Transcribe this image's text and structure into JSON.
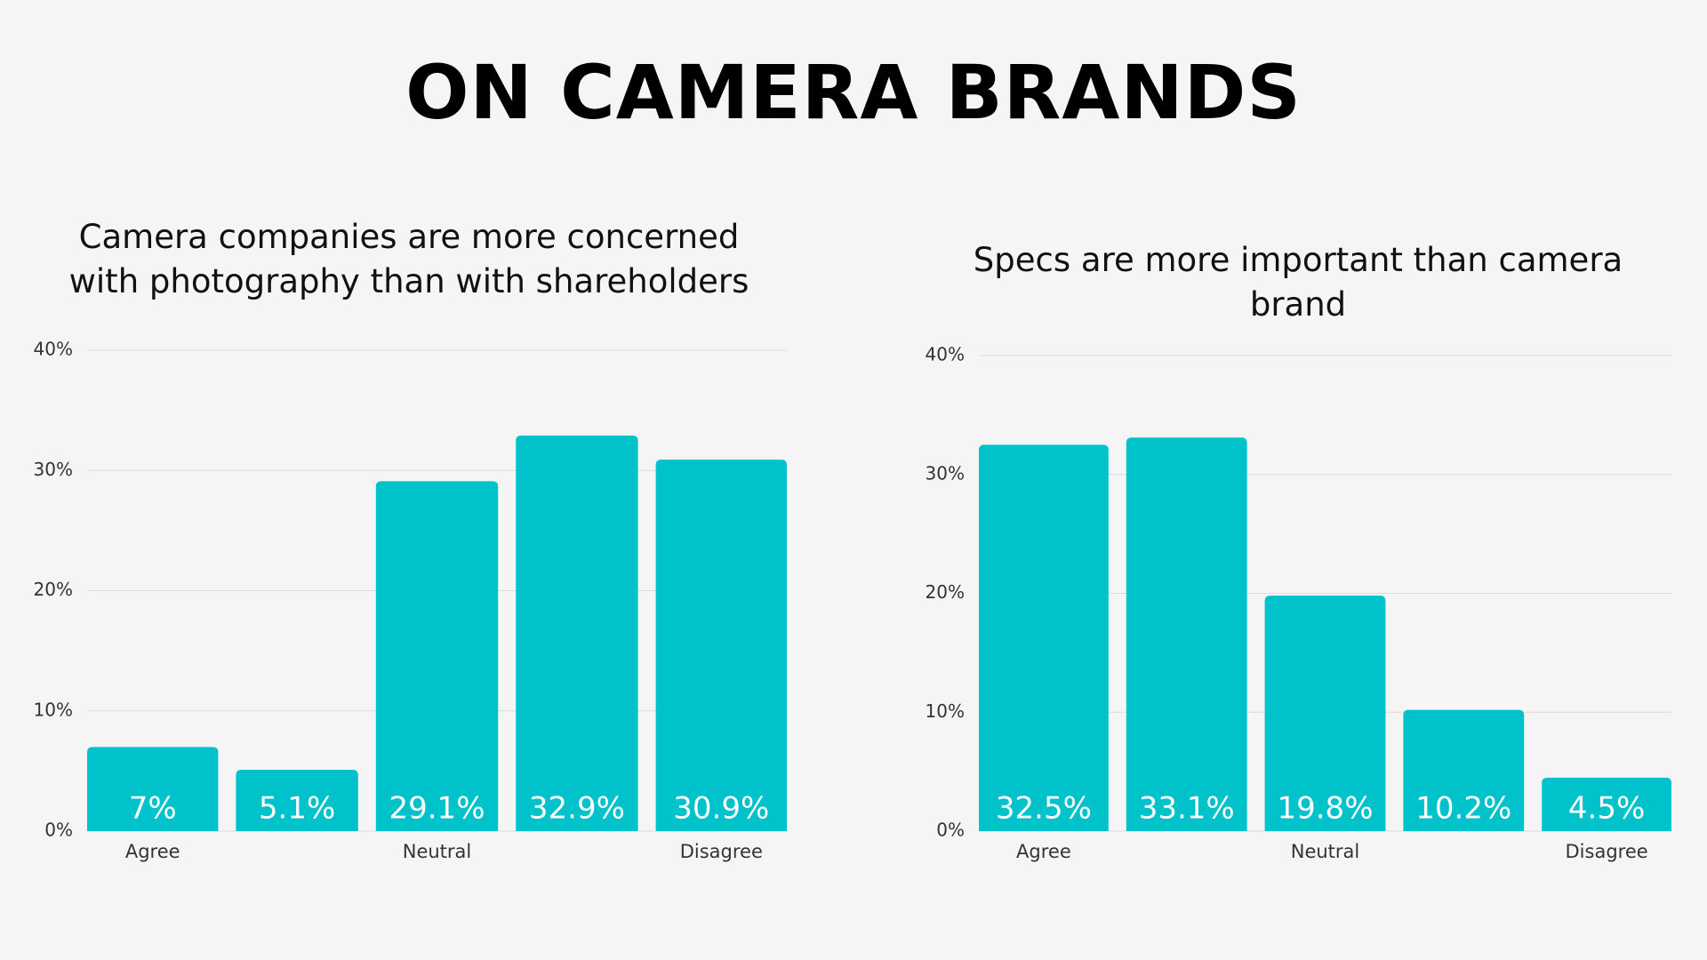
{
  "title": "ON CAMERA BRANDS",
  "chart_data": [
    {
      "type": "bar",
      "title": "Camera companies are more concerned with photography than with shareholders",
      "categories": [
        "Agree",
        null,
        "Neutral",
        null,
        "Disagree"
      ],
      "values": [
        7,
        5.1,
        29.1,
        32.9,
        30.9
      ],
      "value_labels": [
        "7%",
        "5.1%",
        "29.1%",
        "32.9%",
        "30.9%"
      ],
      "color": "#00c2cb",
      "grid": true,
      "ylim": [
        0,
        40
      ],
      "yticks": [
        {
          "value": 0,
          "label": "0%"
        },
        {
          "value": 10,
          "label": "10%"
        },
        {
          "value": 20,
          "label": "20%"
        },
        {
          "value": 30,
          "label": "30%"
        },
        {
          "value": 40,
          "label": "40%"
        }
      ]
    },
    {
      "type": "bar",
      "title": "Specs are more important than camera brand",
      "categories": [
        "Agree",
        null,
        "Neutral",
        null,
        "Disagree"
      ],
      "values": [
        32.5,
        33.1,
        19.8,
        10.2,
        4.5
      ],
      "value_labels": [
        "32.5%",
        "33.1%",
        "19.8%",
        "10.2%",
        "4.5%"
      ],
      "color": "#00c2cb",
      "grid": true,
      "ylim": [
        0,
        40
      ],
      "yticks": [
        {
          "value": 0,
          "label": "0%"
        },
        {
          "value": 10,
          "label": "10%"
        },
        {
          "value": 20,
          "label": "20%"
        },
        {
          "value": 30,
          "label": "30%"
        },
        {
          "value": 40,
          "label": "40%"
        }
      ]
    }
  ]
}
